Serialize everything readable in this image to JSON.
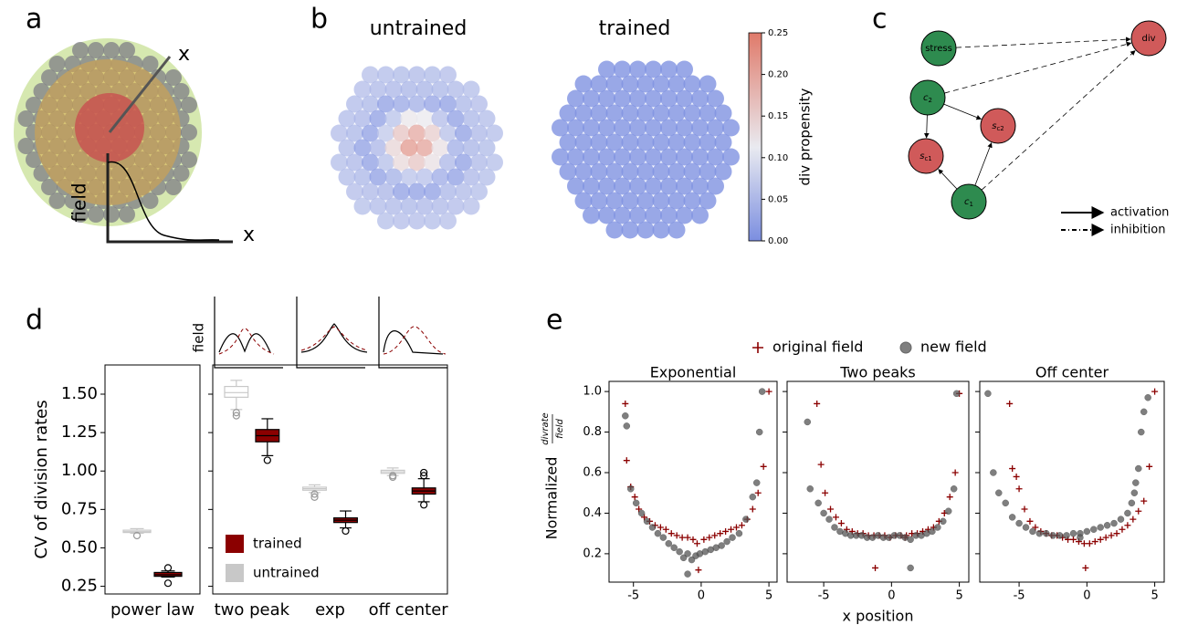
{
  "panel_labels": [
    "a",
    "b",
    "c",
    "d",
    "e"
  ],
  "panel_a": {
    "labels": [
      "x",
      "field",
      "x"
    ]
  },
  "panel_b": {
    "titles": [
      "untrained",
      "trained"
    ],
    "colorbar": {
      "label": "div propensity",
      "lim": [
        0,
        0.25
      ],
      "ticks": [
        {
          "value": 0,
          "label": "0.00"
        },
        0.05,
        {
          "value": 0.1,
          "label": "0.10"
        },
        0.15,
        {
          "value": 0.2,
          "label": "0.20"
        },
        0.25
      ]
    }
  },
  "panel_c": {
    "nodes": [
      {
        "label": "stress"
      },
      {
        "label": "div"
      },
      {
        "label": "c",
        "sub": "2"
      },
      {
        "label": "s",
        "sub": "c2"
      },
      {
        "label": "s",
        "sub": "c1"
      },
      {
        "label": "c",
        "sub": "1"
      }
    ],
    "legend": [
      "activation",
      "inhibition"
    ]
  },
  "panel_d": {
    "inset_label": "field"
  },
  "chart_data": [
    {
      "type": "box",
      "ylabel": "CV of division rates",
      "categories": [
        "power law"
      ],
      "ylim": [
        0.2,
        1.69
      ],
      "yticks": [
        0.25,
        {
          "value": 0.5,
          "label": "0.50"
        },
        0.75,
        {
          "value": 1,
          "label": "1.00"
        },
        1.25,
        {
          "value": 1.5,
          "label": "1.50"
        }
      ],
      "series": [
        {
          "color": "#c8c8c8",
          "boxes": [
            {
              "min": 0.595,
              "q1": 0.6,
              "median": 0.605,
              "q3": 0.615,
              "max": 0.625,
              "outliers": [
                0.58
              ]
            }
          ]
        },
        {
          "color": "#8b0000",
          "boxes": [
            {
              "min": 0.31,
              "q1": 0.315,
              "median": 0.325,
              "q3": 0.34,
              "max": 0.35,
              "outliers": [
                0.27,
                0.37
              ]
            }
          ]
        }
      ]
    },
    {
      "type": "box",
      "categories": [
        "two peak",
        "exp",
        "off center"
      ],
      "ylim": [
        0.2,
        1.69
      ],
      "series": [
        {
          "name": "untrained",
          "color": "#c8c8c8",
          "boxes": [
            {
              "min": 1.4,
              "q1": 1.48,
              "median": 1.51,
              "q3": 1.55,
              "max": 1.59,
              "outliers": [
                1.36,
                1.38
              ]
            },
            {
              "min": 0.86,
              "q1": 0.875,
              "median": 0.885,
              "q3": 0.895,
              "max": 0.91,
              "outliers": [
                0.83,
                0.85
              ]
            },
            {
              "min": 0.97,
              "q1": 0.985,
              "median": 0.995,
              "q3": 1.005,
              "max": 1.02,
              "outliers": [
                0.96,
                0.97
              ]
            }
          ]
        },
        {
          "name": "trained",
          "color": "#8b0000",
          "boxes": [
            {
              "min": 1.1,
              "q1": 1.19,
              "median": 1.23,
              "q3": 1.27,
              "max": 1.34,
              "outliers": [
                1.07
              ]
            },
            {
              "min": 0.63,
              "q1": 0.665,
              "median": 0.68,
              "q3": 0.695,
              "max": 0.74,
              "outliers": [
                0.61
              ]
            },
            {
              "min": 0.8,
              "q1": 0.85,
              "median": 0.87,
              "q3": 0.89,
              "max": 0.95,
              "outliers": [
                0.78,
                0.97,
                0.99
              ]
            }
          ]
        }
      ]
    },
    {
      "type": "scatter",
      "title": "Exponential",
      "ylabel": {
        "text": "Normalized",
        "numerator": "divrate",
        "denominator": "field"
      },
      "xlim": [
        -6.8,
        5.6
      ],
      "xticks": [
        -5,
        0,
        5
      ],
      "ylim": [
        0.06,
        1.05
      ],
      "yticks": [
        0.2,
        0.4,
        0.6,
        0.8,
        {
          "value": 1,
          "label": "1.0"
        }
      ],
      "series": [
        {
          "name": "original field",
          "color": "#8b0000",
          "marker": "plus",
          "x": [
            -5.6,
            -5.5,
            -5.2,
            -4.9,
            -4.6,
            -4.2,
            -3.8,
            -3.4,
            -3.0,
            -2.6,
            -2.2,
            -1.8,
            -1.4,
            -1.0,
            -0.6,
            -0.3,
            0.2,
            0.6,
            1.0,
            1.4,
            1.8,
            2.2,
            2.6,
            3.0,
            3.4,
            3.8,
            4.2,
            4.6,
            5.0,
            -0.2
          ],
          "y": [
            0.94,
            0.66,
            0.53,
            0.48,
            0.42,
            0.38,
            0.36,
            0.34,
            0.33,
            0.32,
            0.3,
            0.29,
            0.28,
            0.28,
            0.27,
            0.25,
            0.27,
            0.28,
            0.29,
            0.3,
            0.31,
            0.32,
            0.33,
            0.34,
            0.37,
            0.42,
            0.5,
            0.63,
            1.0,
            0.12
          ]
        },
        {
          "name": "new field",
          "color": "#555555",
          "marker": "circle",
          "x": [
            -5.6,
            -5.5,
            -5.2,
            -4.8,
            -4.4,
            -4.0,
            -3.6,
            -3.2,
            -2.8,
            -2.4,
            -2.0,
            -1.6,
            -1.3,
            -1.0,
            -0.7,
            -0.4,
            -0.1,
            0.3,
            0.7,
            1.1,
            1.5,
            1.9,
            2.3,
            2.8,
            3.3,
            3.8,
            4.1,
            4.3,
            4.5,
            -1.0
          ],
          "y": [
            0.88,
            0.83,
            0.52,
            0.45,
            0.4,
            0.36,
            0.33,
            0.3,
            0.28,
            0.25,
            0.23,
            0.21,
            0.18,
            0.2,
            0.17,
            0.19,
            0.2,
            0.21,
            0.22,
            0.23,
            0.24,
            0.26,
            0.28,
            0.3,
            0.37,
            0.48,
            0.55,
            0.8,
            1.0,
            0.1
          ]
        }
      ]
    },
    {
      "type": "scatter",
      "title": "Two peaks",
      "xlabel": "x position",
      "xlim": [
        -7.7,
        5.7
      ],
      "xticks": [
        -5,
        0,
        5
      ],
      "ylim": [
        0.06,
        1.05
      ],
      "series": [
        {
          "color": "#8b0000",
          "marker": "plus",
          "x": [
            -5.5,
            -5.2,
            -4.9,
            -4.5,
            -4.1,
            -3.7,
            -3.3,
            -2.9,
            -2.5,
            -2.1,
            -1.7,
            -1.3,
            -0.9,
            -0.5,
            -0.1,
            0.3,
            0.7,
            1.1,
            1.5,
            1.9,
            2.3,
            2.7,
            3.1,
            3.5,
            3.9,
            4.3,
            4.7,
            5.0,
            -1.2,
            1.0
          ],
          "y": [
            0.94,
            0.64,
            0.5,
            0.42,
            0.38,
            0.35,
            0.32,
            0.31,
            0.3,
            0.3,
            0.29,
            0.29,
            0.29,
            0.29,
            0.28,
            0.29,
            0.29,
            0.29,
            0.3,
            0.3,
            0.31,
            0.32,
            0.33,
            0.36,
            0.4,
            0.48,
            0.6,
            0.99,
            0.13,
            0.28
          ]
        },
        {
          "color": "#555555",
          "marker": "circle",
          "x": [
            -6.2,
            -6.0,
            -5.4,
            -5.0,
            -4.6,
            -4.2,
            -3.8,
            -3.4,
            -3.0,
            -2.6,
            -2.2,
            -1.8,
            -1.4,
            -1.0,
            -0.6,
            -0.2,
            0.2,
            0.6,
            1.0,
            1.4,
            1.8,
            2.2,
            2.6,
            3.0,
            3.4,
            3.8,
            4.2,
            4.6,
            4.8,
            1.4
          ],
          "y": [
            0.85,
            0.52,
            0.45,
            0.4,
            0.37,
            0.33,
            0.31,
            0.3,
            0.29,
            0.29,
            0.29,
            0.28,
            0.28,
            0.29,
            0.28,
            0.28,
            0.29,
            0.29,
            0.28,
            0.27,
            0.29,
            0.29,
            0.3,
            0.31,
            0.33,
            0.36,
            0.41,
            0.52,
            0.99,
            0.13
          ]
        }
      ]
    },
    {
      "type": "scatter",
      "title": "Off center",
      "xlim": [
        -7.9,
        5.7
      ],
      "xticks": [
        -5,
        0,
        5
      ],
      "ylim": [
        0.06,
        1.05
      ],
      "series": [
        {
          "color": "#8b0000",
          "marker": "plus",
          "x": [
            -5.7,
            -5.5,
            -5.2,
            -5.0,
            -4.6,
            -4.2,
            -3.8,
            -3.4,
            -3.0,
            -2.6,
            -2.2,
            -1.8,
            -1.4,
            -1.0,
            -0.6,
            -0.2,
            0.2,
            0.6,
            1.0,
            1.4,
            1.8,
            2.2,
            2.6,
            3.0,
            3.4,
            3.8,
            4.2,
            4.6,
            5.0,
            -0.1
          ],
          "y": [
            0.94,
            0.62,
            0.58,
            0.52,
            0.42,
            0.36,
            0.33,
            0.31,
            0.3,
            0.29,
            0.29,
            0.28,
            0.27,
            0.27,
            0.26,
            0.25,
            0.25,
            0.26,
            0.27,
            0.28,
            0.29,
            0.3,
            0.32,
            0.34,
            0.37,
            0.41,
            0.46,
            0.63,
            1.0,
            0.13
          ]
        },
        {
          "color": "#555555",
          "marker": "circle",
          "x": [
            -7.3,
            -6.9,
            -6.5,
            -6.0,
            -5.5,
            -5.0,
            -4.5,
            -4.0,
            -3.5,
            -3.0,
            -2.5,
            -2.0,
            -1.5,
            -1.0,
            -0.5,
            0.0,
            0.5,
            1.0,
            1.5,
            2.0,
            2.5,
            3.0,
            3.3,
            3.6,
            3.8,
            4.0,
            4.2,
            4.5,
            3.5,
            -0.5
          ],
          "y": [
            0.99,
            0.6,
            0.5,
            0.45,
            0.38,
            0.35,
            0.33,
            0.31,
            0.3,
            0.3,
            0.29,
            0.29,
            0.29,
            0.3,
            0.3,
            0.31,
            0.32,
            0.33,
            0.34,
            0.35,
            0.37,
            0.4,
            0.45,
            0.55,
            0.62,
            0.8,
            0.9,
            0.97,
            0.5,
            0.28
          ]
        }
      ]
    }
  ]
}
